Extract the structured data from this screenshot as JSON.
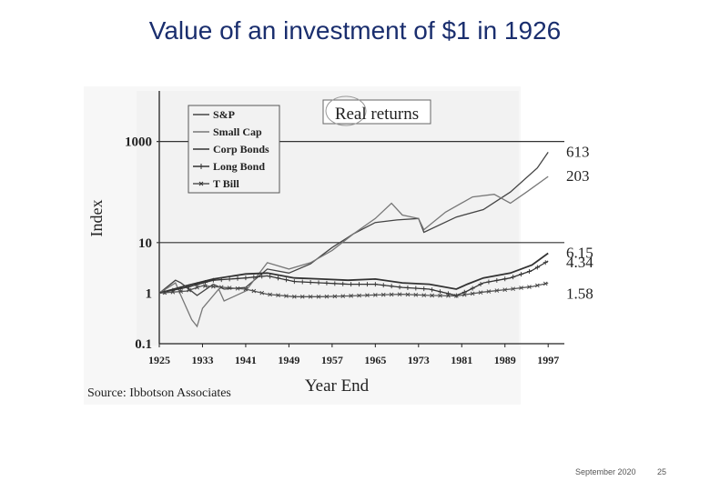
{
  "slide": {
    "title": "Value of an investment of $1 in 1926",
    "footer_date": "September 2020",
    "page_number": "25"
  },
  "chart_data": {
    "type": "line",
    "badge": "Real returns",
    "xlabel": "Year End",
    "ylabel": "Index",
    "y_scale": "log",
    "ylim": [
      0.1,
      10000
    ],
    "xlim": [
      1925,
      2000
    ],
    "x_ticks": [
      1925,
      1933,
      1941,
      1949,
      1957,
      1965,
      1973,
      1981,
      1989,
      1997
    ],
    "y_ticks": [
      {
        "value": 0.1,
        "label": "0.1"
      },
      {
        "value": 1,
        "label": "1"
      },
      {
        "value": 10,
        "label": "10"
      },
      {
        "value": 1000,
        "label": "1000"
      }
    ],
    "reference_lines": [
      10,
      1000
    ],
    "source": "Source: Ibbotson Associates",
    "legend_position": "top-left",
    "series": [
      {
        "name": "S&P",
        "end_label": "613",
        "marker": "none",
        "color": "#444444",
        "points": [
          [
            1925,
            1
          ],
          [
            1928,
            1.8
          ],
          [
            1929,
            1.6
          ],
          [
            1932,
            0.9
          ],
          [
            1935,
            1.5
          ],
          [
            1937,
            1.2
          ],
          [
            1941,
            1.3
          ],
          [
            1945,
            3.0
          ],
          [
            1949,
            2.5
          ],
          [
            1953,
            3.8
          ],
          [
            1957,
            8
          ],
          [
            1961,
            15
          ],
          [
            1965,
            25
          ],
          [
            1969,
            28
          ],
          [
            1973,
            30
          ],
          [
            1974,
            16
          ],
          [
            1980,
            32
          ],
          [
            1985,
            45
          ],
          [
            1990,
            100
          ],
          [
            1995,
            300
          ],
          [
            1997,
            613
          ]
        ]
      },
      {
        "name": "Small Cap",
        "end_label": "203",
        "marker": "none",
        "color": "#777777",
        "points": [
          [
            1925,
            1
          ],
          [
            1928,
            1.6
          ],
          [
            1929,
            0.9
          ],
          [
            1931,
            0.3
          ],
          [
            1932,
            0.22
          ],
          [
            1933,
            0.5
          ],
          [
            1936,
            1.2
          ],
          [
            1937,
            0.7
          ],
          [
            1941,
            1.1
          ],
          [
            1945,
            4
          ],
          [
            1949,
            3
          ],
          [
            1953,
            4
          ],
          [
            1957,
            7
          ],
          [
            1961,
            15
          ],
          [
            1965,
            30
          ],
          [
            1968,
            60
          ],
          [
            1970,
            35
          ],
          [
            1973,
            30
          ],
          [
            1974,
            18
          ],
          [
            1978,
            40
          ],
          [
            1983,
            80
          ],
          [
            1987,
            90
          ],
          [
            1990,
            60
          ],
          [
            1993,
            100
          ],
          [
            1997,
            203
          ]
        ]
      },
      {
        "name": "Corp Bonds",
        "end_label": "6.15",
        "marker": "none",
        "color": "#333333",
        "points": [
          [
            1925,
            1
          ],
          [
            1930,
            1.4
          ],
          [
            1935,
            1.9
          ],
          [
            1941,
            2.4
          ],
          [
            1945,
            2.5
          ],
          [
            1950,
            2.0
          ],
          [
            1955,
            1.9
          ],
          [
            1960,
            1.8
          ],
          [
            1965,
            1.9
          ],
          [
            1970,
            1.6
          ],
          [
            1975,
            1.5
          ],
          [
            1980,
            1.2
          ],
          [
            1982,
            1.5
          ],
          [
            1985,
            2.0
          ],
          [
            1990,
            2.5
          ],
          [
            1994,
            3.6
          ],
          [
            1997,
            6.15
          ]
        ]
      },
      {
        "name": "Long Bond",
        "end_label": "4.34",
        "marker": "star",
        "color": "#333333",
        "points": [
          [
            1925,
            1
          ],
          [
            1930,
            1.3
          ],
          [
            1935,
            1.8
          ],
          [
            1941,
            2.0
          ],
          [
            1945,
            2.2
          ],
          [
            1950,
            1.7
          ],
          [
            1955,
            1.6
          ],
          [
            1960,
            1.5
          ],
          [
            1965,
            1.5
          ],
          [
            1970,
            1.3
          ],
          [
            1975,
            1.2
          ],
          [
            1980,
            0.9
          ],
          [
            1982,
            1.1
          ],
          [
            1985,
            1.6
          ],
          [
            1990,
            2.0
          ],
          [
            1994,
            2.8
          ],
          [
            1997,
            4.34
          ]
        ]
      },
      {
        "name": "T Bill",
        "end_label": "1.58",
        "marker": "x",
        "color": "#555555",
        "points": [
          [
            1925,
            1
          ],
          [
            1930,
            1.1
          ],
          [
            1933,
            1.4
          ],
          [
            1937,
            1.3
          ],
          [
            1941,
            1.2
          ],
          [
            1945,
            0.95
          ],
          [
            1950,
            0.85
          ],
          [
            1955,
            0.85
          ],
          [
            1960,
            0.88
          ],
          [
            1965,
            0.92
          ],
          [
            1970,
            0.95
          ],
          [
            1975,
            0.9
          ],
          [
            1980,
            0.88
          ],
          [
            1985,
            1.05
          ],
          [
            1990,
            1.2
          ],
          [
            1994,
            1.35
          ],
          [
            1997,
            1.58
          ]
        ]
      }
    ]
  }
}
